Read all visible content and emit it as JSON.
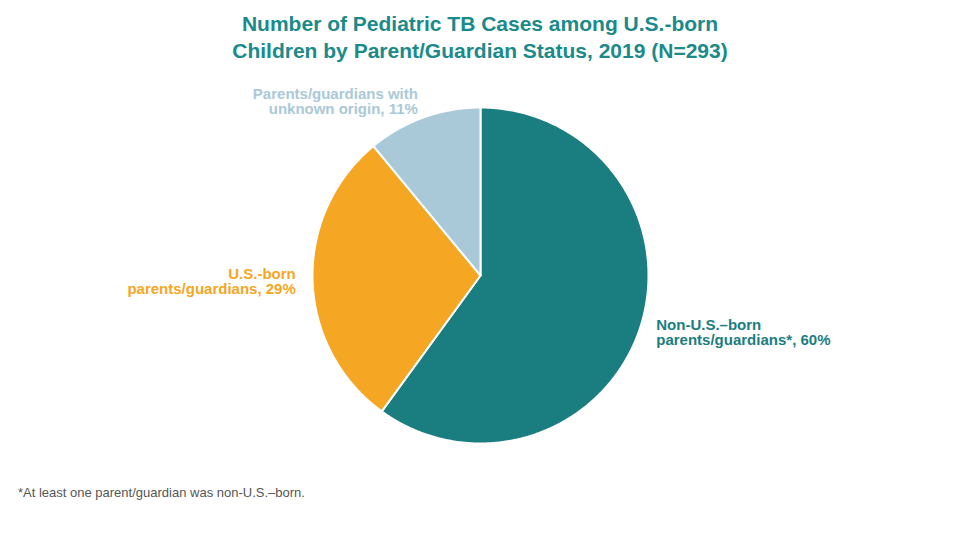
{
  "chart_data": {
    "type": "pie",
    "title": "Number of Pediatric TB Cases among U.S.-born Children by Parent/Guardian Status, 2019 (N=293)",
    "categories": [
      "Non-U.S.–born parents/guardians*, 60%",
      "U.S.-born parents/guardians, 29%",
      "Parents/guardians with unknown origin, 11%"
    ],
    "values": [
      60,
      29,
      11
    ],
    "colors": [
      "#1a7d80",
      "#f5a623",
      "#aac9d8"
    ],
    "annotations": [
      "*At least one parent/guardian was non-U.S.–born."
    ]
  }
}
